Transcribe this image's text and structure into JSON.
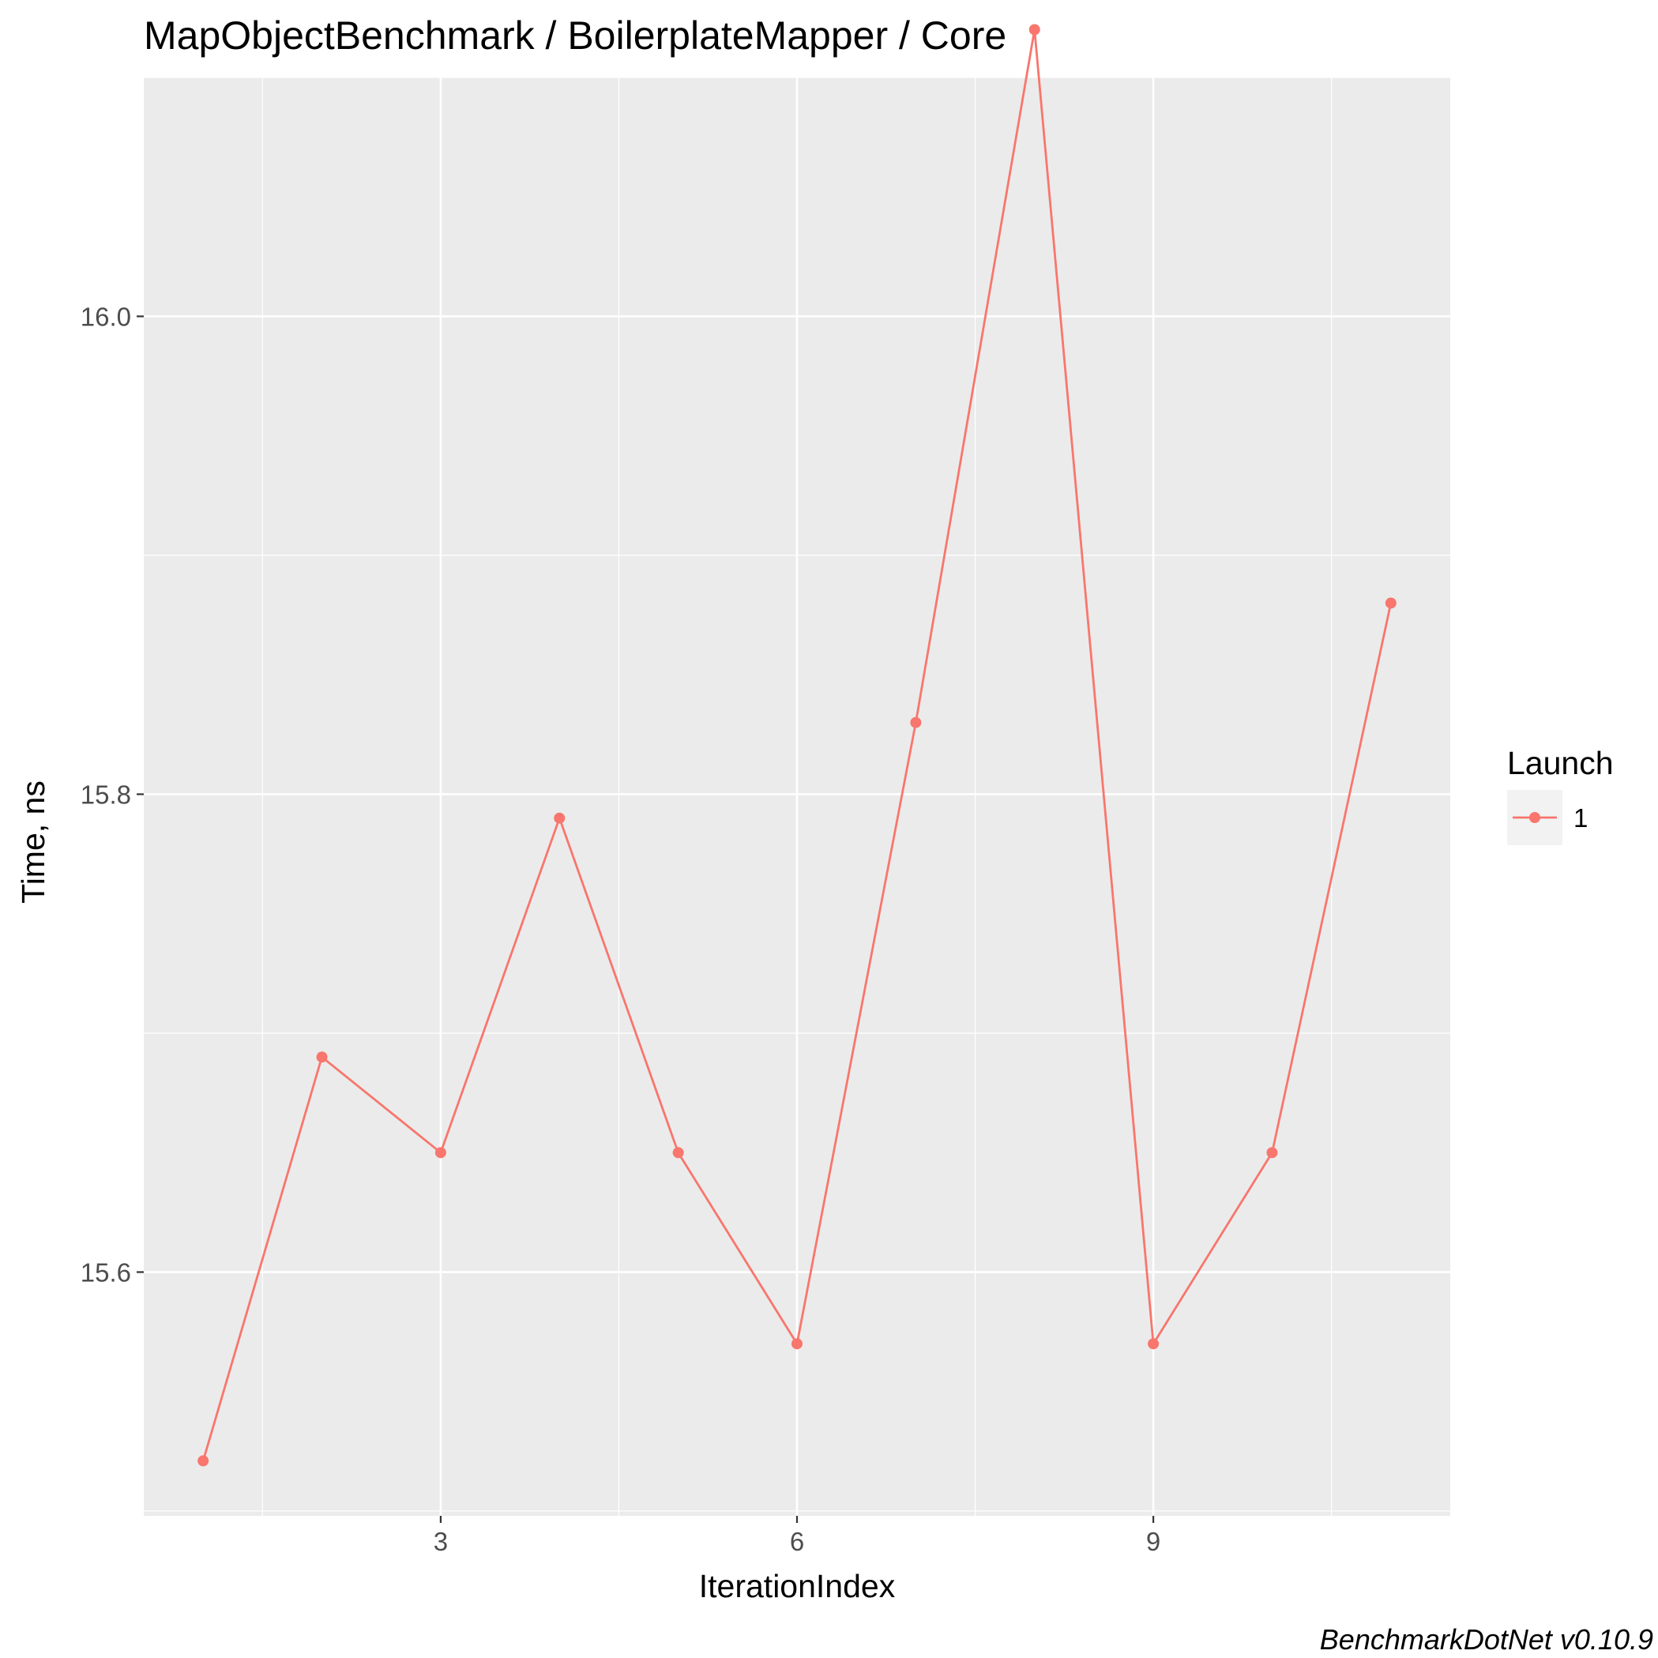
{
  "chart_data": {
    "type": "line",
    "title": "MapObjectBenchmark / BoilerplateMapper / Core",
    "xlabel": "IterationIndex",
    "ylabel": "Time, ns",
    "x_ticks": [
      3,
      6,
      9
    ],
    "y_ticks": [
      15.6,
      15.8,
      16.0
    ],
    "y_tick_labels": [
      "15.6",
      "15.8",
      "16.0"
    ],
    "xlim": [
      0.5,
      11.5
    ],
    "ylim": [
      15.498,
      16.1
    ],
    "grid": true,
    "legend": {
      "title": "Launch",
      "position": "right"
    },
    "series": [
      {
        "name": "1",
        "color": "#F8766D",
        "x": [
          1,
          2,
          3,
          4,
          5,
          6,
          7,
          8,
          9,
          10,
          11
        ],
        "y": [
          15.521,
          15.69,
          15.65,
          15.79,
          15.65,
          15.57,
          15.83,
          16.12,
          15.57,
          15.65,
          15.88
        ]
      }
    ],
    "caption": "BenchmarkDotNet v0.10.9"
  }
}
